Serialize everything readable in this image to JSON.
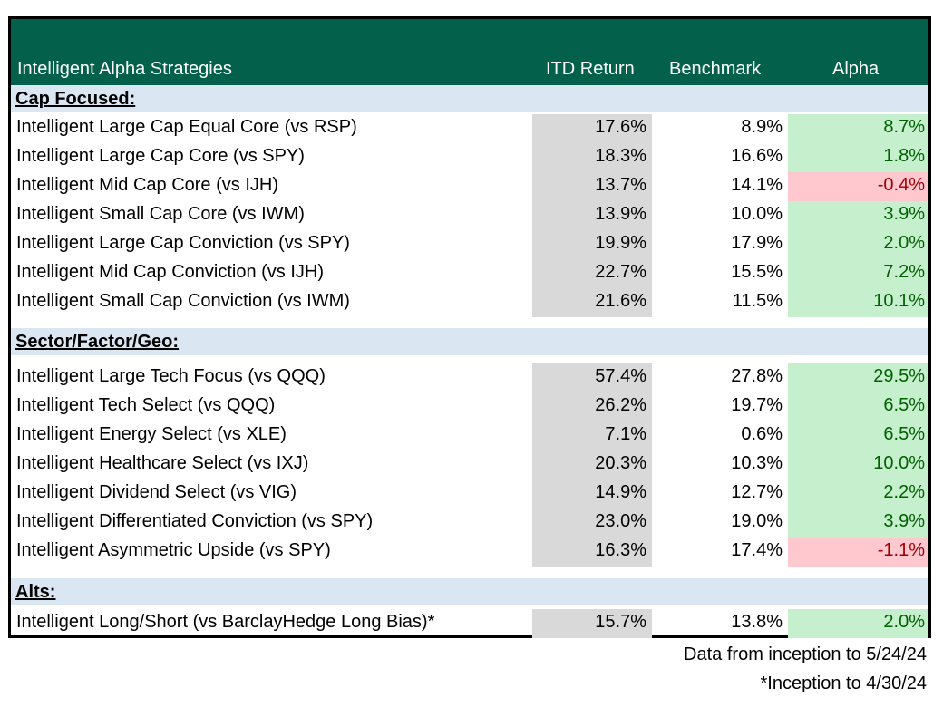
{
  "header": {
    "name": "Intelligent Alpha Strategies",
    "itd": "ITD Return",
    "benchmark": "Benchmark",
    "alpha": "Alpha"
  },
  "colors": {
    "header_bg": "#03604a",
    "section_bg": "#dbe6f3",
    "itd_bg": "#d9d9d9",
    "positive_bg": "#c6efce",
    "positive_text": "#006100",
    "negative_bg": "#ffc7ce",
    "negative_text": "#9c0006"
  },
  "sections": [
    {
      "title": "Cap Focused:",
      "rows": [
        {
          "name": "Intelligent Large Cap Equal Core (vs RSP)",
          "itd": "17.6%",
          "benchmark": "8.9%",
          "alpha": "8.7%",
          "sign": "pos"
        },
        {
          "name": "Intelligent Large Cap Core (vs SPY)",
          "itd": "18.3%",
          "benchmark": "16.6%",
          "alpha": "1.8%",
          "sign": "pos"
        },
        {
          "name": "Intelligent Mid Cap Core (vs IJH)",
          "itd": "13.7%",
          "benchmark": "14.1%",
          "alpha": "-0.4%",
          "sign": "neg"
        },
        {
          "name": "Intelligent Small Cap Core (vs IWM)",
          "itd": "13.9%",
          "benchmark": "10.0%",
          "alpha": "3.9%",
          "sign": "pos"
        },
        {
          "name": "Intelligent Large Cap Conviction (vs SPY)",
          "itd": "19.9%",
          "benchmark": "17.9%",
          "alpha": "2.0%",
          "sign": "pos"
        },
        {
          "name": "Intelligent Mid Cap Conviction (vs IJH)",
          "itd": "22.7%",
          "benchmark": "15.5%",
          "alpha": "7.2%",
          "sign": "pos"
        },
        {
          "name": "Intelligent Small Cap Conviction (vs IWM)",
          "itd": "21.6%",
          "benchmark": "11.5%",
          "alpha": "10.1%",
          "sign": "pos"
        }
      ]
    },
    {
      "title": "Sector/Factor/Geo:",
      "rows": [
        {
          "name": "Intelligent Large Tech Focus (vs QQQ)",
          "itd": "57.4%",
          "benchmark": "27.8%",
          "alpha": "29.5%",
          "sign": "pos"
        },
        {
          "name": "Intelligent Tech Select (vs QQQ)",
          "itd": "26.2%",
          "benchmark": "19.7%",
          "alpha": "6.5%",
          "sign": "pos"
        },
        {
          "name": "Intelligent Energy Select (vs XLE)",
          "itd": "7.1%",
          "benchmark": "0.6%",
          "alpha": "6.5%",
          "sign": "pos"
        },
        {
          "name": "Intelligent Healthcare Select (vs IXJ)",
          "itd": "20.3%",
          "benchmark": "10.3%",
          "alpha": "10.0%",
          "sign": "pos"
        },
        {
          "name": "Intelligent Dividend Select (vs VIG)",
          "itd": "14.9%",
          "benchmark": "12.7%",
          "alpha": "2.2%",
          "sign": "pos"
        },
        {
          "name": "Intelligent Differentiated Conviction (vs SPY)",
          "itd": "23.0%",
          "benchmark": "19.0%",
          "alpha": "3.9%",
          "sign": "pos"
        },
        {
          "name": "Intelligent Asymmetric Upside (vs SPY)",
          "itd": "16.3%",
          "benchmark": "17.4%",
          "alpha": "-1.1%",
          "sign": "neg"
        }
      ]
    },
    {
      "title": "Alts:",
      "rows": [
        {
          "name": "Intelligent Long/Short (vs BarclayHedge Long Bias)*",
          "itd": "15.7%",
          "benchmark": "13.8%",
          "alpha": "2.0%",
          "sign": "pos"
        }
      ]
    }
  ],
  "footnotes": {
    "line1": "Data from inception to 5/24/24",
    "line2": "*Inception to 4/30/24"
  }
}
